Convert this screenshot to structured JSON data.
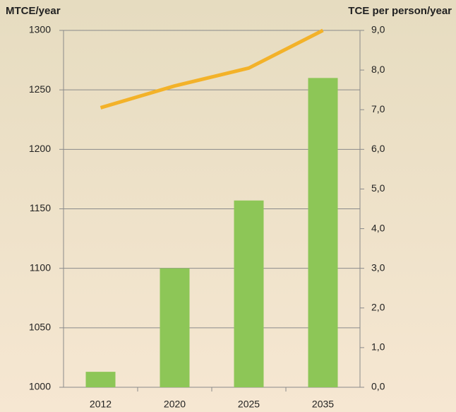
{
  "chart_data": {
    "type": "bar",
    "categories": [
      "2012",
      "2020",
      "2025",
      "2035"
    ],
    "series": [
      {
        "type": "bar",
        "color": "#8dc657",
        "values": [
          1013,
          1100,
          1157,
          1260
        ]
      },
      {
        "type": "line",
        "axis": "y2",
        "color": "#f3b229",
        "values": [
          7.05,
          7.6,
          8.05,
          9.0
        ]
      }
    ],
    "y_label": "MTCE/year",
    "y2_label": "TCE per person/year",
    "ylim": [
      1000,
      1300
    ],
    "yticks": [
      1000,
      1050,
      1100,
      1150,
      1200,
      1250,
      1300
    ],
    "y2lim": [
      0,
      9
    ],
    "y2ticks": [
      {
        "value": 0,
        "label": "0,0"
      },
      {
        "value": 1,
        "label": "1,0"
      },
      {
        "value": 2,
        "label": "2,0"
      },
      {
        "value": 3,
        "label": "3,0"
      },
      {
        "value": 4,
        "label": "4,0"
      },
      {
        "value": 5,
        "label": "5,0"
      },
      {
        "value": 6,
        "label": "6,0"
      },
      {
        "value": 7,
        "label": "7,0"
      },
      {
        "value": 8,
        "label": "8,0"
      },
      {
        "value": 9,
        "label": "9,0"
      }
    ],
    "grid": true
  }
}
